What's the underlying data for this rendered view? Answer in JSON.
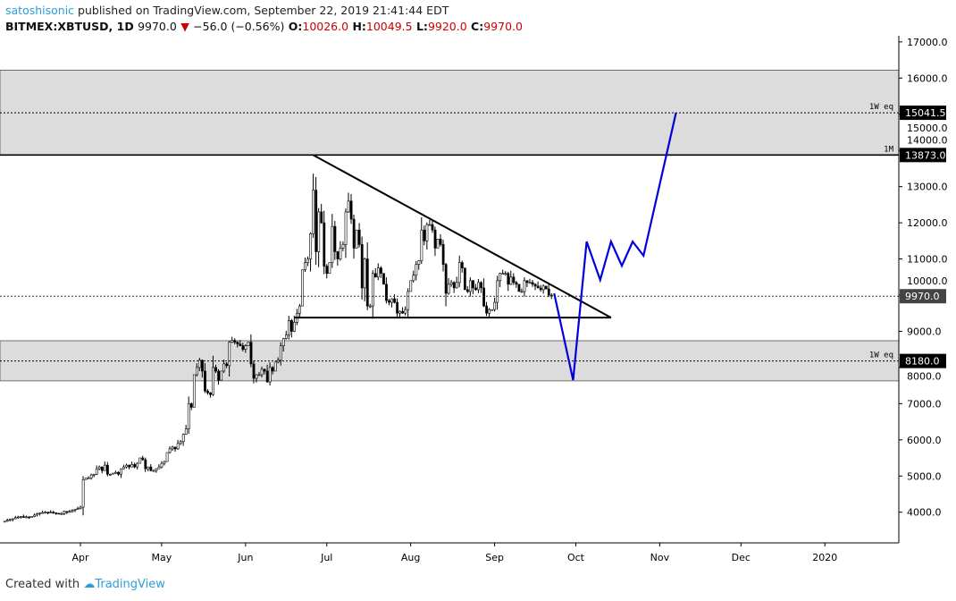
{
  "header": {
    "user": "satoshisonic",
    "published": "published on TradingView.com, September 22, 2019 21:41:44 EDT",
    "symbol": "BITMEX:XBTUSD, 1D",
    "last": "9970.0",
    "change": "−56.0 (−0.56%)",
    "o_label": "O:",
    "o": "10026.0",
    "h_label": "H:",
    "h": "10049.5",
    "l_label": "L:",
    "l": "9920.0",
    "c_label": "C:",
    "c": "9970.0"
  },
  "footer": {
    "text": "Created with",
    "brand": "TradingView"
  },
  "colors": {
    "up": "#ffffff",
    "down": "#000000",
    "projection": "#0000dd",
    "zone": "#dcdcdc",
    "down_arrow": "#cc0000"
  },
  "chart_data": {
    "type": "candlestick",
    "x_axis": {
      "ticks": [
        "Apr",
        "May",
        "Jun",
        "Jul",
        "Aug",
        "Sep",
        "Oct",
        "Nov",
        "Dec",
        "2020"
      ],
      "tick_dates": [
        "2019-04-01",
        "2019-05-01",
        "2019-06-01",
        "2019-07-01",
        "2019-08-01",
        "2019-09-01",
        "2019-10-01",
        "2019-11-01",
        "2019-12-01",
        "2020-01-01"
      ],
      "range": [
        "2019-03-03",
        "2020-01-28"
      ]
    },
    "y_axis": {
      "ticks": [
        "4000.0",
        "5000.0",
        "6000.0",
        "7000.0",
        "8000.0",
        "9000.0",
        "10000.0",
        "11000.0",
        "12000.0",
        "13000.0",
        "14000.0",
        "15000.0",
        "16000.0",
        "17000.0"
      ],
      "range": [
        3200,
        17200
      ],
      "scale": "linear"
    },
    "start_date": "2019-03-04",
    "closes": [
      3750,
      3780,
      3800,
      3820,
      3850,
      3870,
      3880,
      3860,
      3870,
      3860,
      3880,
      3920,
      3960,
      3980,
      3990,
      4000,
      3990,
      4000,
      3980,
      3970,
      3950,
      3960,
      4020,
      4000,
      4020,
      4050,
      4080,
      4100,
      4140,
      4900,
      4950,
      4950,
      5030,
      5050,
      5200,
      5250,
      5150,
      5300,
      5050,
      5050,
      5080,
      5100,
      5050,
      5200,
      5250,
      5300,
      5250,
      5320,
      5250,
      5350,
      5500,
      5450,
      5200,
      5250,
      5150,
      5150,
      5200,
      5250,
      5350,
      5400,
      5650,
      5750,
      5800,
      5750,
      5900,
      5950,
      6150,
      6300,
      7000,
      6900,
      7800,
      8000,
      8200,
      7900,
      7350,
      7300,
      7250,
      8000,
      7900,
      7650,
      7900,
      8100,
      8050,
      8700,
      8750,
      8700,
      8650,
      8600,
      8500,
      8600,
      8700,
      8100,
      7700,
      7800,
      7800,
      7950,
      7900,
      7600,
      8000,
      7900,
      8150,
      8200,
      8600,
      8800,
      8900,
      9300,
      9000,
      9250,
      9500,
      9700,
      10700,
      10900,
      11000,
      11700,
      12900,
      11200,
      12300,
      12000,
      10800,
      10600,
      10900,
      11900,
      11200,
      11000,
      11300,
      11400,
      12300,
      12600,
      12100,
      11300,
      11800,
      11400,
      10200,
      11000,
      9700,
      9700,
      10600,
      10500,
      10750,
      10600,
      10300,
      9850,
      9800,
      9900,
      9800,
      9500,
      9550,
      9500,
      9600,
      10100,
      10400,
      10550,
      10850,
      10950,
      11800,
      11500,
      11950,
      11950,
      11800,
      11300,
      11550,
      11400,
      10850,
      10050,
      10300,
      10350,
      10200,
      10350,
      10900,
      10750,
      10150,
      10100,
      10400,
      10200,
      10150,
      10350,
      10200,
      9700,
      9500,
      9600,
      9600,
      9800,
      10400,
      10600,
      10600,
      10600,
      10300,
      10500,
      10350,
      10300,
      10100,
      10100,
      10400,
      10350,
      10350,
      10300,
      10250,
      10200,
      10150,
      10250,
      10170,
      10000,
      9970
    ],
    "zones": [
      {
        "from": 13873,
        "to": 16220
      },
      {
        "from": 7630,
        "to": 8740
      }
    ],
    "levels": [
      {
        "price": 15041.5,
        "label": "1W eq",
        "tag": "15041.5",
        "style": "dotted"
      },
      {
        "price": 13873.0,
        "label": "1M",
        "tag": "13873.0",
        "style": "solid"
      },
      {
        "price": 8180.0,
        "label": "1W eq",
        "tag": "8180.0",
        "style": "dotted"
      }
    ],
    "last_price": {
      "price": 9970.0,
      "tag": "9970.0"
    },
    "triangle": {
      "resistance": [
        [
          "2019-06-26",
          13873
        ],
        [
          "2019-10-14",
          9380
        ]
      ],
      "support": [
        [
          "2019-06-19",
          9380
        ],
        [
          "2019-10-14",
          9380
        ]
      ]
    },
    "projection": [
      [
        "2019-09-23",
        10050
      ],
      [
        "2019-09-30",
        7650
      ],
      [
        "2019-10-05",
        11480
      ],
      [
        "2019-10-10",
        10420
      ],
      [
        "2019-10-14",
        11480
      ],
      [
        "2019-10-18",
        10810
      ],
      [
        "2019-10-22",
        11480
      ],
      [
        "2019-10-26",
        11090
      ],
      [
        "2019-11-07",
        15041.5
      ]
    ]
  }
}
